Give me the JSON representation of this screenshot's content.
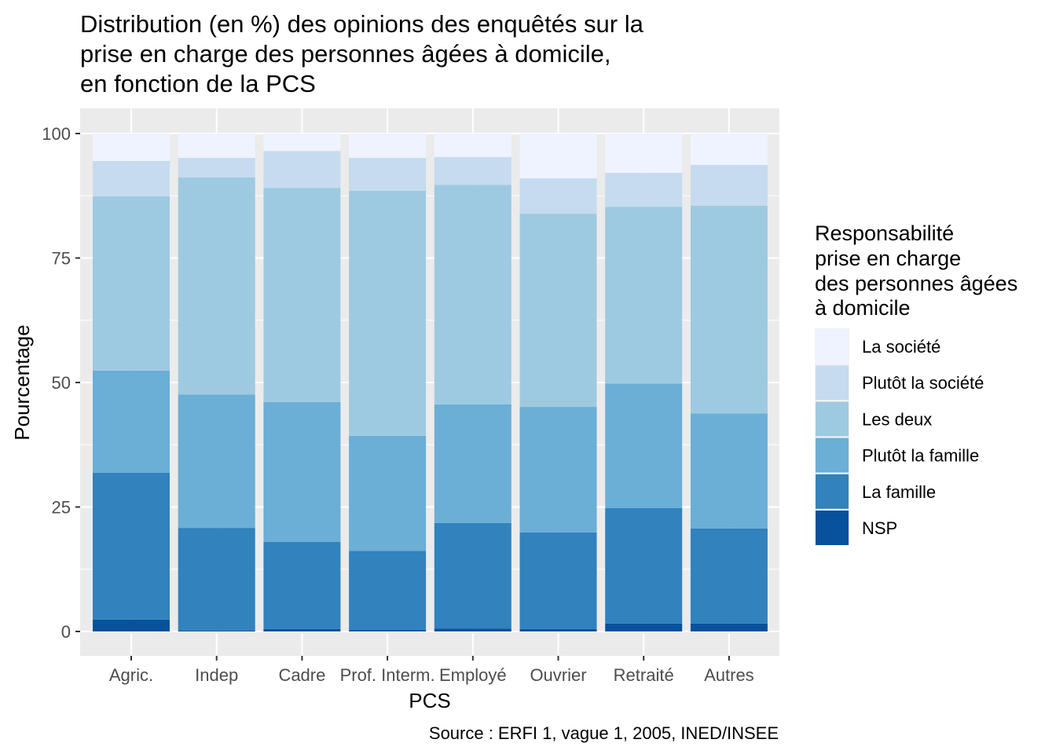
{
  "chart_data": {
    "type": "bar",
    "stacked": true,
    "title": [
      "Distribution (en %) des opinions des enquêtés sur la",
      "prise en charge des personnes âgées à domicile,",
      "en fonction de la PCS"
    ],
    "xlabel": "PCS",
    "ylabel": "Pourcentage",
    "caption": "Source : ERFI 1, vague 1, 2005, INED/INSEE",
    "ylim": [
      0,
      100
    ],
    "yticks": [
      0,
      25,
      50,
      75,
      100
    ],
    "grid": true,
    "categories": [
      "Agric.",
      "Indep",
      "Cadre",
      "Prof. Interm.",
      "Employé",
      "Ouvrier",
      "Retraité",
      "Autres"
    ],
    "legend": {
      "title": [
        "Responsabilité",
        "prise en charge",
        "des personnes âgées",
        "à domicile"
      ],
      "placement": "right"
    },
    "series": [
      {
        "name": "NSP",
        "color": "#08519c",
        "values": [
          2.4,
          0.2,
          0.5,
          0.3,
          0.6,
          0.5,
          1.6,
          1.6
        ]
      },
      {
        "name": "La famille",
        "color": "#3182bd",
        "values": [
          29.5,
          20.6,
          17.5,
          15.9,
          21.2,
          19.4,
          23.2,
          19.1
        ]
      },
      {
        "name": "Plutôt la famille",
        "color": "#6baed6",
        "values": [
          20.5,
          26.8,
          28.1,
          23.1,
          23.8,
          25.2,
          25.0,
          23.1
        ]
      },
      {
        "name": "Les deux",
        "color": "#9ecae1",
        "values": [
          35.0,
          43.6,
          43.0,
          49.2,
          44.1,
          38.8,
          35.5,
          41.7
        ]
      },
      {
        "name": "Plutôt la société",
        "color": "#c6dbef",
        "values": [
          7.1,
          3.9,
          7.4,
          6.6,
          5.6,
          7.1,
          6.8,
          8.2
        ]
      },
      {
        "name": "La société",
        "color": "#eff3ff",
        "values": [
          5.5,
          4.9,
          3.5,
          4.9,
          4.7,
          9.0,
          7.9,
          6.3
        ]
      }
    ]
  }
}
